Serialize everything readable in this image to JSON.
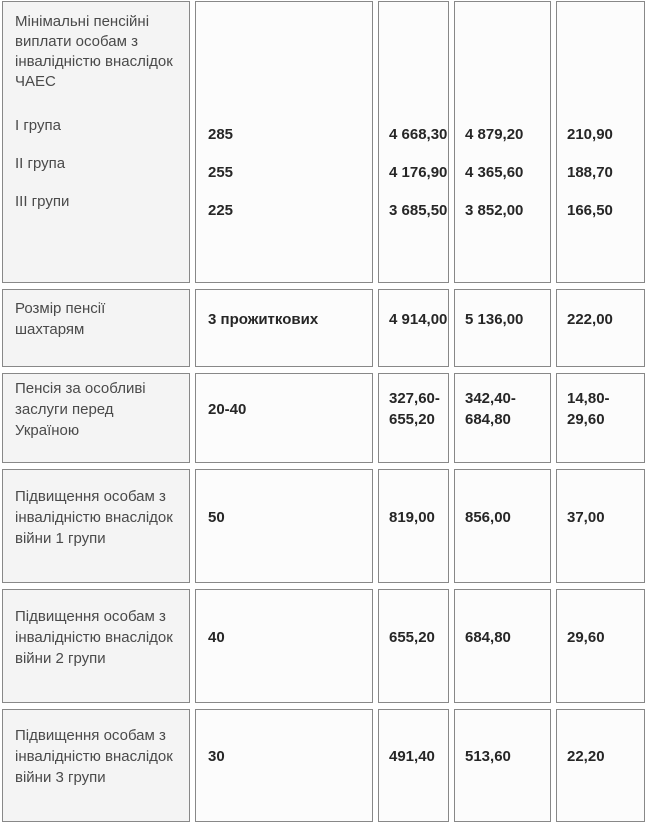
{
  "colors": {
    "border": "#888888",
    "label_cell_bg": "#f4f4f4",
    "value_cell_bg": "#fcfcfc",
    "label_text": "#4a4a4a",
    "value_text": "#262626"
  },
  "table": {
    "rows": [
      {
        "title": "Мінімальні пенсійні виплати особам з інвалідністю внаслідок ЧАЕС",
        "groups": [
          "І група",
          "ІІ група",
          "ІІІ групи"
        ],
        "c2": [
          "285",
          "255",
          "225"
        ],
        "c3": [
          "4 668,30",
          "4 176,90",
          "3 685,50"
        ],
        "c4": [
          "4 879,20",
          "4 365,60",
          "3 852,00"
        ],
        "c5": [
          "210,90",
          "188,70",
          "166,50"
        ]
      },
      {
        "label": "Розмір пенсії шахтарям",
        "c2": "3 прожиткових",
        "c3": "4 914,00",
        "c4": "5 136,00",
        "c5": "222,00"
      },
      {
        "label": "Пенсія за особливі заслуги перед Україною",
        "c2": "20-40",
        "c3": "327,60-655,20",
        "c4": "342,40-684,80",
        "c5": "14,80-29,60"
      },
      {
        "label": "Підвищення особам з інвалідністю внаслідок війни 1 групи",
        "c2": "50",
        "c3": "819,00",
        "c4": "856,00",
        "c5": "37,00"
      },
      {
        "label": "Підвищення особам з інвалідністю внаслідок війни 2 групи",
        "c2": "40",
        "c3": "655,20",
        "c4": "684,80",
        "c5": "29,60"
      },
      {
        "label": "Підвищення особам з інвалідністю внаслідок війни 3 групи",
        "c2": "30",
        "c3": "491,40",
        "c4": "513,60",
        "c5": "22,20"
      }
    ]
  }
}
